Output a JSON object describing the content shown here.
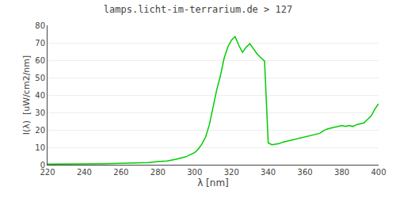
{
  "chart_data": {
    "type": "line",
    "title": "lamps.licht-im-terrarium.de > 127",
    "xlabel": "λ [nm]",
    "ylabel": "I(λ)  [uW/cm2/nm]",
    "x": [
      220,
      225,
      230,
      235,
      240,
      245,
      250,
      255,
      260,
      265,
      270,
      275,
      280,
      285,
      290,
      295,
      300,
      302,
      304,
      306,
      308,
      310,
      312,
      314,
      316,
      318,
      320,
      322,
      324,
      326,
      328,
      330,
      332,
      334,
      336,
      338,
      340,
      342,
      344,
      346,
      348,
      350,
      352,
      354,
      356,
      358,
      360,
      362,
      364,
      366,
      368,
      370,
      372,
      374,
      376,
      378,
      380,
      382,
      384,
      386,
      388,
      390,
      392,
      394,
      396,
      398,
      400
    ],
    "values": [
      0.3,
      0.3,
      0.4,
      0.4,
      0.5,
      0.5,
      0.6,
      0.7,
      0.8,
      0.9,
      1.0,
      1.3,
      1.8,
      2.2,
      3.2,
      4.5,
      7.0,
      9.0,
      12.0,
      16.0,
      23.0,
      33.0,
      43.0,
      51.0,
      61.0,
      67.5,
      71.5,
      73.5,
      68.5,
      64.5,
      67.5,
      69.5,
      66.5,
      63.5,
      61.5,
      59.5,
      12.5,
      11.5,
      11.8,
      12.2,
      13.0,
      13.5,
      14.0,
      14.5,
      15.0,
      15.5,
      16.0,
      16.5,
      17.0,
      17.5,
      18.0,
      19.5,
      20.5,
      21.0,
      21.5,
      22.0,
      22.5,
      22.0,
      22.5,
      22.0,
      23.0,
      23.5,
      24.0,
      26.0,
      28.0,
      32.0,
      35.0
    ],
    "color": "#00cc00",
    "xlim": [
      220,
      400
    ],
    "ylim": [
      0,
      80
    ],
    "xticks": [
      220,
      240,
      260,
      280,
      300,
      320,
      340,
      360,
      380,
      400
    ],
    "yticks": [
      0,
      10,
      20,
      30,
      40,
      50,
      60,
      70,
      80
    ],
    "grid": true
  }
}
